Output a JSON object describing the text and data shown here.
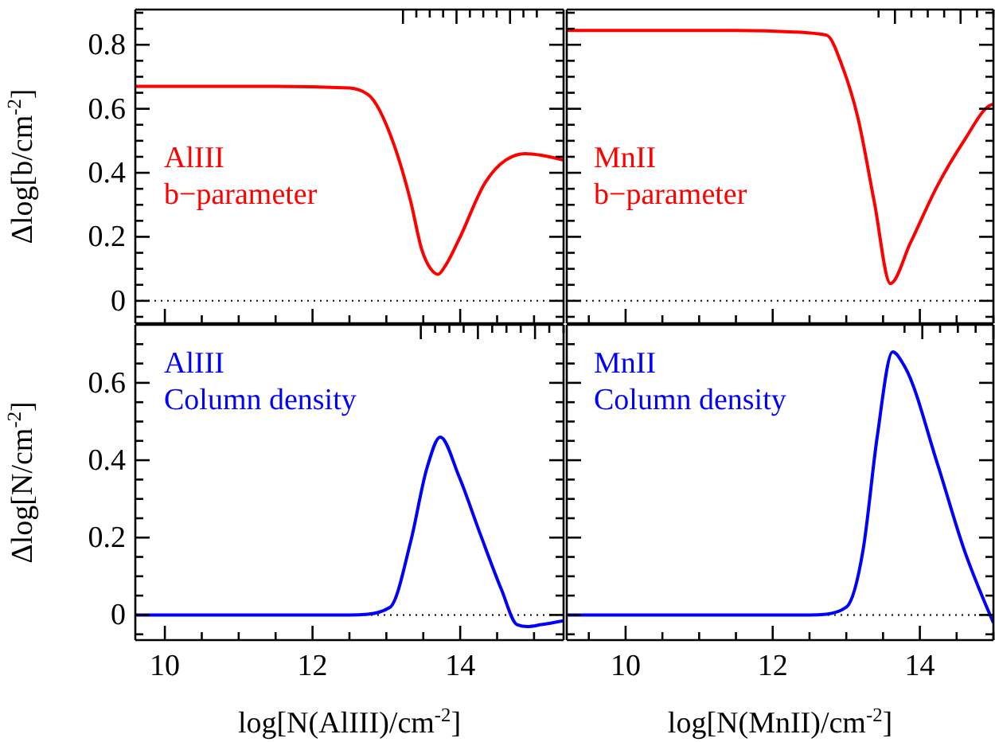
{
  "chart_data": [
    {
      "type": "line",
      "ylabel": "Δlog[b/cm$^{-2}$]",
      "tick_labels": "y",
      "annotations": [
        "AlIII",
        "b−parameter"
      ],
      "x": [
        9.6,
        10.5,
        11.5,
        12.5,
        12.75,
        13.1,
        13.33,
        13.48,
        13.6,
        13.7,
        13.8,
        13.98,
        14.34,
        14.62,
        14.88,
        15.1,
        15.4
      ],
      "series": [
        {
          "color": "#ff0000",
          "values": [
            0.67,
            0.67,
            0.67,
            0.665,
            0.645,
            0.49,
            0.31,
            0.16,
            0.1,
            0.083,
            0.11,
            0.19,
            0.37,
            0.44,
            0.46,
            0.455,
            0.44
          ]
        }
      ],
      "xlim": [
        9.6,
        15.4
      ],
      "xticks": [
        10,
        {
          "value": 10.5,
          "label": null
        },
        {
          "value": 11,
          "label": null
        },
        {
          "value": 11.5,
          "label": null
        },
        12,
        {
          "value": 12.5,
          "label": null
        },
        {
          "value": 13,
          "label": null
        },
        {
          "value": 13.5,
          "label": null
        },
        14,
        {
          "value": 14.5,
          "label": null
        },
        {
          "value": 15,
          "label": null
        }
      ],
      "ylim": [
        -0.07,
        0.91
      ],
      "yticks": [
        {
          "value": -0.05,
          "label": null
        },
        0,
        {
          "value": 0.05,
          "label": null
        },
        {
          "value": 0.1,
          "label": null
        },
        {
          "value": 0.15,
          "label": null
        },
        0.2,
        {
          "value": 0.25,
          "label": null
        },
        {
          "value": 0.3,
          "label": null
        },
        {
          "value": 0.35,
          "label": null
        },
        0.4,
        {
          "value": 0.45,
          "label": null
        },
        {
          "value": 0.5,
          "label": null
        },
        {
          "value": 0.55,
          "label": null
        },
        0.6,
        {
          "value": 0.65,
          "label": null
        },
        {
          "value": 0.7,
          "label": null
        },
        {
          "value": 0.75,
          "label": null
        },
        0.8,
        {
          "value": 0.85,
          "label": null
        },
        {
          "value": 0.9,
          "label": null
        }
      ],
      "ref_lines": [
        {
          "axis": "y",
          "value": 0,
          "line_style": "dotted",
          "color": "#000000"
        }
      ]
    },
    {
      "type": "line",
      "tick_labels": false,
      "annotations": [
        "MnII",
        "b−parameter"
      ],
      "x": [
        9.2,
        10.5,
        11.5,
        12.3,
        12.73,
        12.95,
        13.16,
        13.38,
        13.6,
        13.87,
        14.24,
        14.6,
        14.95,
        15.0
      ],
      "series": [
        {
          "color": "#ff0000",
          "values": [
            0.845,
            0.845,
            0.845,
            0.84,
            0.83,
            0.73,
            0.57,
            0.31,
            0.054,
            0.18,
            0.36,
            0.5,
            0.61,
            0.615
          ]
        }
      ],
      "xlim": [
        9.2,
        15.0
      ],
      "xticks": [
        {
          "value": 9.5,
          "label": null
        },
        10,
        {
          "value": 10.5,
          "label": null
        },
        {
          "value": 11,
          "label": null
        },
        {
          "value": 11.5,
          "label": null
        },
        12,
        {
          "value": 12.5,
          "label": null
        },
        {
          "value": 13,
          "label": null
        },
        {
          "value": 13.5,
          "label": null
        },
        14,
        {
          "value": 14.5,
          "label": null
        },
        {
          "value": 15,
          "label": null
        }
      ],
      "ylim": [
        -0.07,
        0.91
      ],
      "yticks": [
        {
          "value": -0.05,
          "label": null
        },
        0,
        {
          "value": 0.05,
          "label": null
        },
        {
          "value": 0.1,
          "label": null
        },
        {
          "value": 0.15,
          "label": null
        },
        0.2,
        {
          "value": 0.25,
          "label": null
        },
        {
          "value": 0.3,
          "label": null
        },
        {
          "value": 0.35,
          "label": null
        },
        0.4,
        {
          "value": 0.45,
          "label": null
        },
        {
          "value": 0.5,
          "label": null
        },
        {
          "value": 0.55,
          "label": null
        },
        0.6,
        {
          "value": 0.65,
          "label": null
        },
        {
          "value": 0.7,
          "label": null
        },
        {
          "value": 0.75,
          "label": null
        },
        0.8,
        {
          "value": 0.85,
          "label": null
        },
        {
          "value": 0.9,
          "label": null
        }
      ],
      "ref_lines": [
        {
          "axis": "y",
          "value": 0,
          "line_style": "dotted",
          "color": "#000000"
        }
      ]
    },
    {
      "type": "line",
      "ylabel": "Δlog[N/cm$^{-2}$]",
      "xlabel": "log[N(AlIII)/cm$^{-2}$]",
      "annotations": [
        "AlIII",
        "Column density"
      ],
      "x": [
        9.6,
        10.5,
        11.5,
        12.5,
        12.75,
        13.05,
        13.33,
        13.55,
        13.73,
        13.98,
        14.27,
        14.56,
        14.77,
        14.91,
        15.1,
        15.4
      ],
      "series": [
        {
          "color": "#0000ff",
          "values": [
            0,
            0,
            0,
            0,
            0.002,
            0.02,
            0.19,
            0.38,
            0.46,
            0.36,
            0.21,
            0.065,
            -0.025,
            -0.03,
            -0.025,
            -0.015
          ]
        }
      ],
      "xlim": [
        9.6,
        15.4
      ],
      "xticks": [
        10,
        {
          "value": 10.5,
          "label": null
        },
        {
          "value": 11,
          "label": null
        },
        {
          "value": 11.5,
          "label": null
        },
        12,
        {
          "value": 12.5,
          "label": null
        },
        {
          "value": 13,
          "label": null
        },
        {
          "value": 13.5,
          "label": null
        },
        14,
        {
          "value": 14.5,
          "label": null
        },
        {
          "value": 15,
          "label": null
        }
      ],
      "ylim": [
        -0.065,
        0.75
      ],
      "yticks": [
        {
          "value": -0.05,
          "label": null
        },
        0,
        {
          "value": 0.05,
          "label": null
        },
        {
          "value": 0.1,
          "label": null
        },
        {
          "value": 0.15,
          "label": null
        },
        0.2,
        {
          "value": 0.25,
          "label": null
        },
        {
          "value": 0.3,
          "label": null
        },
        {
          "value": 0.35,
          "label": null
        },
        0.4,
        {
          "value": 0.45,
          "label": null
        },
        {
          "value": 0.5,
          "label": null
        },
        {
          "value": 0.55,
          "label": null
        },
        0.6,
        {
          "value": 0.65,
          "label": null
        },
        {
          "value": 0.7,
          "label": null
        }
      ],
      "ref_lines": [
        {
          "axis": "y",
          "value": 0,
          "line_style": "dotted",
          "color": "#000000"
        }
      ]
    },
    {
      "type": "line",
      "tick_labels": "x",
      "xlabel": "log[N(MnII)/cm$^{-2}$]",
      "annotations": [
        "MnII",
        "Column density"
      ],
      "x": [
        9.2,
        10.5,
        11.5,
        12.5,
        12.73,
        13.0,
        13.23,
        13.42,
        13.63,
        13.8,
        14.24,
        14.6,
        15.0
      ],
      "series": [
        {
          "color": "#0000ff",
          "values": [
            0,
            0,
            0,
            0,
            0.002,
            0.02,
            0.17,
            0.46,
            0.68,
            0.64,
            0.39,
            0.17,
            -0.02
          ]
        }
      ],
      "xlim": [
        9.2,
        15.0
      ],
      "xticks": [
        {
          "value": 9.5,
          "label": null
        },
        10,
        {
          "value": 10.5,
          "label": null
        },
        {
          "value": 11,
          "label": null
        },
        {
          "value": 11.5,
          "label": null
        },
        12,
        {
          "value": 12.5,
          "label": null
        },
        {
          "value": 13,
          "label": null
        },
        {
          "value": 13.5,
          "label": null
        },
        14,
        {
          "value": 14.5,
          "label": null
        },
        {
          "value": 15,
          "label": null
        }
      ],
      "ylim": [
        -0.065,
        0.75
      ],
      "yticks": [
        {
          "value": -0.05,
          "label": null
        },
        0,
        {
          "value": 0.05,
          "label": null
        },
        {
          "value": 0.1,
          "label": null
        },
        {
          "value": 0.15,
          "label": null
        },
        0.2,
        {
          "value": 0.25,
          "label": null
        },
        {
          "value": 0.3,
          "label": null
        },
        {
          "value": 0.35,
          "label": null
        },
        0.4,
        {
          "value": 0.45,
          "label": null
        },
        {
          "value": 0.5,
          "label": null
        },
        {
          "value": 0.55,
          "label": null
        },
        0.6,
        {
          "value": 0.65,
          "label": null
        },
        {
          "value": 0.7,
          "label": null
        }
      ],
      "ref_lines": [
        {
          "axis": "y",
          "value": 0,
          "line_style": "dotted",
          "color": "#000000"
        }
      ]
    }
  ]
}
